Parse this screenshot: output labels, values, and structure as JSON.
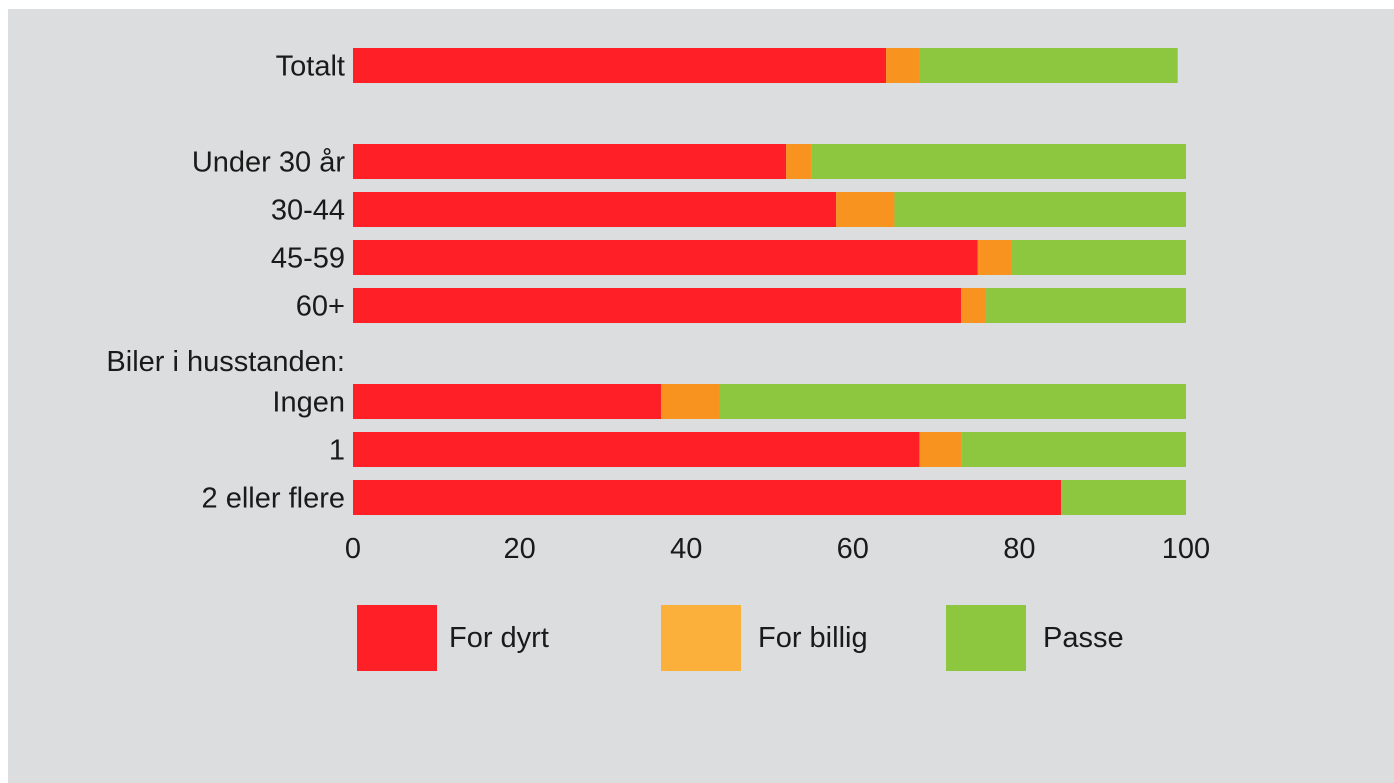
{
  "chart_data": {
    "type": "bar",
    "orientation": "horizontal",
    "stacked": true,
    "title": "",
    "xlabel": "",
    "ylabel": "",
    "xlim": [
      0,
      100
    ],
    "x_ticks": [
      "0",
      "20",
      "40",
      "60",
      "80",
      "100"
    ],
    "grid": false,
    "legend_position": "bottom",
    "categories": [
      "Totalt",
      "Under 30 år",
      "30-44",
      "45-59",
      "60+",
      "Ingen",
      "1",
      "2 eller flere"
    ],
    "group_heading": "Biler i husstanden:",
    "series": [
      {
        "name": "For dyrt",
        "color": "#ff1f26",
        "values": [
          64,
          52,
          58,
          75,
          73,
          37,
          68,
          85
        ]
      },
      {
        "name": "For billig",
        "color": "#f7931e",
        "values": [
          4,
          3,
          7,
          4,
          3,
          7,
          5,
          0
        ]
      },
      {
        "name": "Passe",
        "color": "#8dc63f",
        "values": [
          31,
          45,
          35,
          21,
          24,
          56,
          27,
          15
        ]
      }
    ],
    "legend_swatch_colors": [
      "#ff1f26",
      "#fbb03b",
      "#8dc63f"
    ]
  }
}
